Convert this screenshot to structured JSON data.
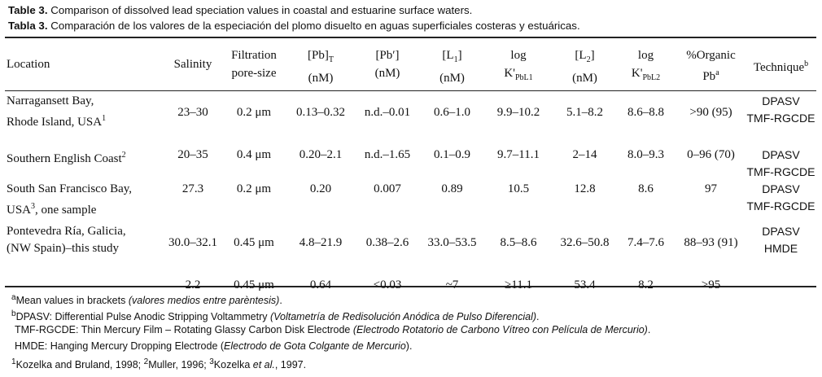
{
  "caption": {
    "en_label": "Table 3.",
    "en_text": " Comparison of dissolved lead speciation values in coastal and estuarine surface waters.",
    "es_label": "Tabla 3.",
    "es_text": " Comparación de los valores de la especiación del plomo disuelto en aguas superficiales costeras y estuáricas."
  },
  "header": {
    "location": "Location",
    "salinity": "Salinity",
    "filtration_l1": "Filtration",
    "filtration_l2": "pore-size",
    "pbt_main": "[Pb]",
    "pbt_sub": "T",
    "pbt_unit": "(nM)",
    "pbprime_main": "[Pb′]",
    "pbprime_unit": "(nM)",
    "l1_main": "[L",
    "l1_sub": "1",
    "l1_close": "]",
    "l1_unit": "(nM)",
    "logk1_l1": "log",
    "logk1_main": "K'",
    "logk1_sub": "PbL1",
    "l2_main": "[L",
    "l2_sub": "2",
    "l2_close": "]",
    "l2_unit": "(nM)",
    "logk2_l1": "log",
    "logk2_main": "K'",
    "logk2_sub": "PbL2",
    "org_l1": "%Organic",
    "org_main": "Pb",
    "org_sup": "a",
    "tech_main": "Technique",
    "tech_sup": "b"
  },
  "rows": [
    {
      "loc1": "Narragansett Bay,",
      "loc2": "Rhode Island, USA",
      "loc2_sup": "1",
      "loc2_tail": "",
      "salinity": "23–30",
      "filtration": "0.2 μm",
      "pbt": "0.13–0.32",
      "pbprime": "n.d.–0.01",
      "l1": "0.6–1.0",
      "logk1": "9.9–10.2",
      "l2": "5.1–8.2",
      "logk2": "8.6–8.8",
      "organic": ">90 (95)",
      "tech1": "DPASV",
      "tech2": "TMF-RGCDE"
    },
    {
      "loc1": "Southern English Coast",
      "loc1_sup": "2",
      "salinity": "20–35",
      "filtration": "0.4 μm",
      "pbt": "0.20–2.1",
      "pbprime": "n.d.–1.65",
      "l1": "0.1–0.9",
      "logk1": "9.7–11.1",
      "l2": "2–14",
      "logk2": "8.0–9.3",
      "organic": "0–96 (70)",
      "tech1": "DPASV",
      "tech2": "TMF-RGCDE"
    },
    {
      "loc1": "South San Francisco Bay,",
      "loc2": "USA",
      "loc2_sup": "3",
      "loc2_tail": ", one sample",
      "salinity": "27.3",
      "filtration": "0.2 μm",
      "pbt": "0.20",
      "pbprime": "0.007",
      "l1": "0.89",
      "logk1": "10.5",
      "l2": "12.8",
      "logk2": "8.6",
      "organic": "97",
      "tech1": "DPASV",
      "tech2": "TMF-RGCDE"
    },
    {
      "loc1": "Pontevedra Ría, Galicia,",
      "loc2": "(NW Spain)–this study",
      "loc2_sup": "",
      "loc2_tail": "",
      "salinity": "30.0–32.1",
      "filtration": "0.45 μm",
      "pbt": "4.8–21.9",
      "pbprime": "0.38–2.6",
      "l1": "33.0–53.5",
      "logk1": "8.5–8.6",
      "l2": "32.6–50.8",
      "logk2": "7.4–7.6",
      "organic": "88–93 (91)",
      "tech1": "DPASV",
      "tech2": "HMDE"
    },
    {
      "loc1": "",
      "salinity": "2.2",
      "filtration": "0.45 μm",
      "pbt": "0.64",
      "pbprime": "<0.03",
      "l1": "~7",
      "logk1": "≥11.1",
      "l2": "53.4",
      "logk2": "8.2",
      "organic": ">95",
      "tech1": "",
      "tech2": ""
    }
  ],
  "footnotes": {
    "a_mark": "a",
    "a_text": "Mean values in brackets ",
    "a_italic": "(valores medios entre parèntesis)",
    "a_end": ".",
    "b_mark": "b",
    "b_text": "DPASV: Differential Pulse Anodic Stripping Voltammetry ",
    "b_italic": "(Voltametría de Redisolución Anódica de Pulso Diferencial)",
    "b_end": ".",
    "tmf_text": "TMF-RGCDE: Thin Mercury Film – Rotating Glassy Carbon Disk Electrode ",
    "tmf_italic": "(Electrodo Rotatorio de Carbono Vítreo con Película de Mercurio)",
    "tmf_end": ".",
    "hmde_text": "HMDE: Hanging Mercury Dropping Electrode (",
    "hmde_italic": "Electrodo de Gota Colgante de Mercurio",
    "hmde_end": ").",
    "ref1_mark": "1",
    "ref1_text": "Kozelka and Bruland, 1998; ",
    "ref2_mark": "2",
    "ref2_text": "Muller, 1996; ",
    "ref3_mark": "3",
    "ref3_text": "Kozelka ",
    "ref3_italic": "et al.",
    "ref3_end": ", 1997."
  }
}
